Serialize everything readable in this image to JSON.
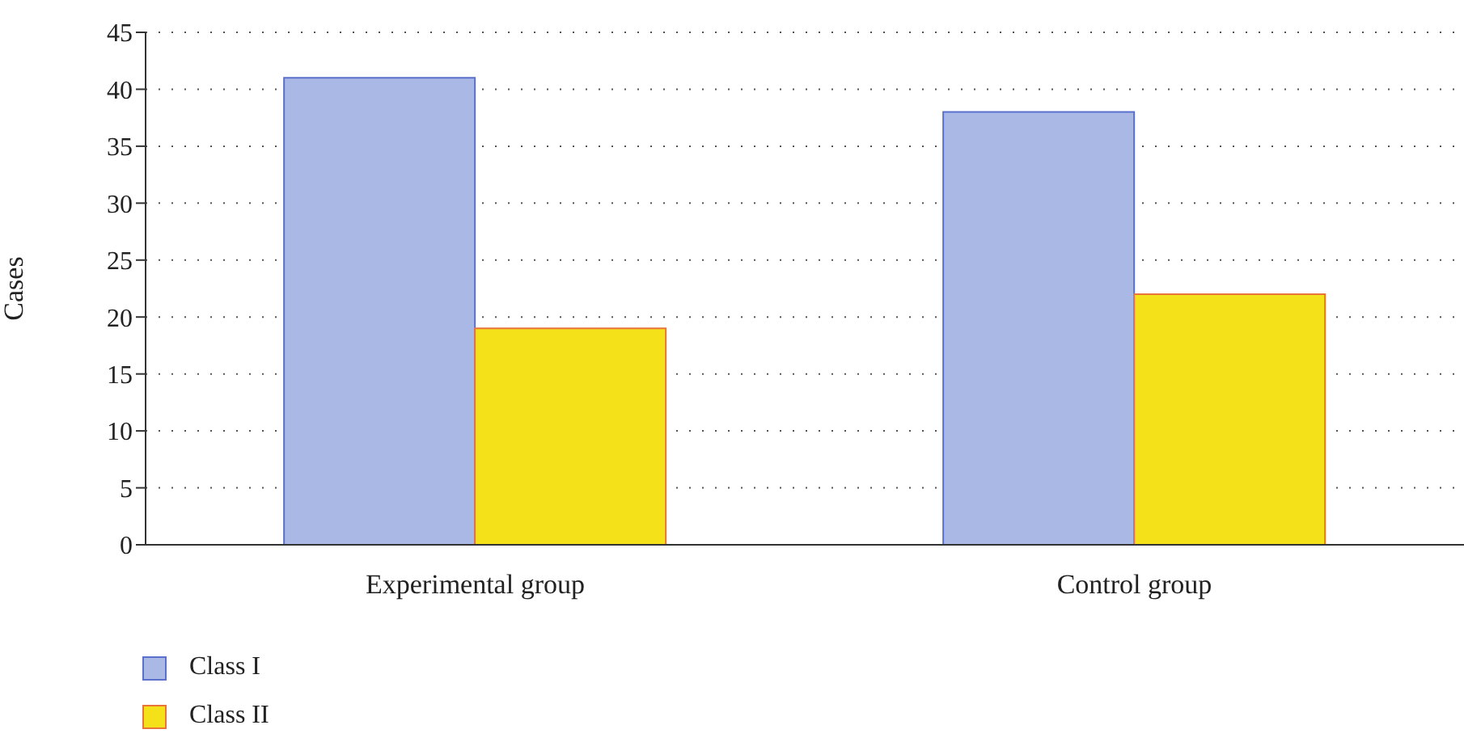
{
  "chart_data": {
    "type": "bar",
    "ylabel": "Cases",
    "categories": [
      "Experimental group",
      "Control group"
    ],
    "series": [
      {
        "name": "Class I",
        "color": "#aab8e6",
        "values": [
          41,
          38
        ]
      },
      {
        "name": "Class II",
        "color": "#f4e11a",
        "values": [
          19,
          22
        ]
      }
    ],
    "ylim": [
      0,
      45
    ],
    "yticks": [
      0,
      5,
      10,
      15,
      20,
      25,
      30,
      35,
      40,
      45
    ],
    "grid": "y",
    "legend": "bottom left"
  }
}
